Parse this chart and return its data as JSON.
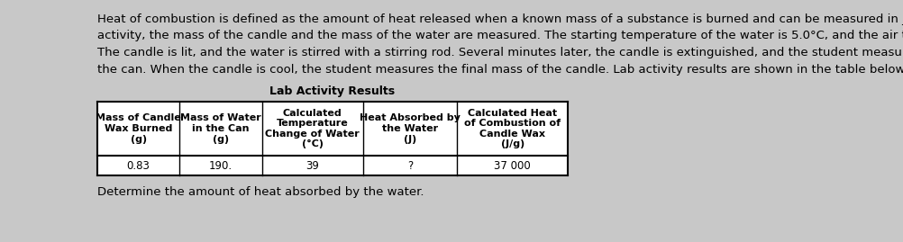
{
  "background_color": "#c8c8c8",
  "text_color": "#000000",
  "paragraph_lines": [
    "Heat of combustion is defined as the amount of heat released when a known mass of a substance is burned and can be measured in joules pe",
    "activity, the mass of the candle and the mass of the water are measured. The starting temperature of the water is 5.0°C, and the air temperatu",
    "The candle is lit, and the water is stirred with a stirring rod. Several minutes later, the candle is extinguished, and the student measures the ten",
    "the can. When the candle is cool, the student measures the final mass of the candle. Lab activity results are shown in the table below."
  ],
  "table_title": "Lab Activity Results",
  "col_headers": [
    "Mass of Candle\nWax Burned\n(g)",
    "Mass of Water\nin the Can\n(g)",
    "Calculated\nTemperature\nChange of Water\n(°C)",
    "Heat Absorbed by\nthe Water\n(J)",
    "Calculated Heat\nof Combustion of\nCandle Wax\n(J/g)"
  ],
  "data_row": [
    "0.83",
    "190.",
    "39",
    "?",
    "37 000"
  ],
  "footer_text": "Determine the amount of heat absorbed by the water.",
  "font_size_para": 9.5,
  "font_size_table_header": 8.0,
  "font_size_table_data": 8.5,
  "font_size_title": 9.0,
  "font_size_footer": 9.5
}
